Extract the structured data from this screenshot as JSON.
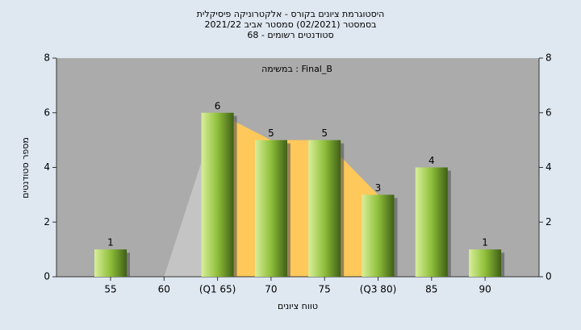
{
  "chart_data": {
    "type": "bar",
    "title": "היסטוגרמת ציונים בקורס - אלקטרוניקה פיסיקלית",
    "subtitle": "בסמסטר  (02/2021)  סמסטר אביב 2021/22",
    "subtitle2": "סטודנטים רשומים - 68",
    "annotation": "במשימה : Final_B",
    "x_label": "טווח ציונים",
    "y_label": "מספר סטודנטים",
    "categories": [
      "55",
      "60",
      "(Q1 65)",
      "70",
      "75",
      "(Q3 80)",
      "85",
      "90"
    ],
    "values": [
      1,
      0,
      6,
      5,
      5,
      3,
      4,
      1
    ],
    "color": "#8fbf3a",
    "ylim": [
      0,
      8
    ],
    "yticks": [
      0,
      2,
      4,
      6,
      8
    ],
    "y2lim": [
      0,
      8
    ],
    "y2ticks": [
      0,
      2,
      4,
      6,
      8
    ],
    "grid": false
  }
}
